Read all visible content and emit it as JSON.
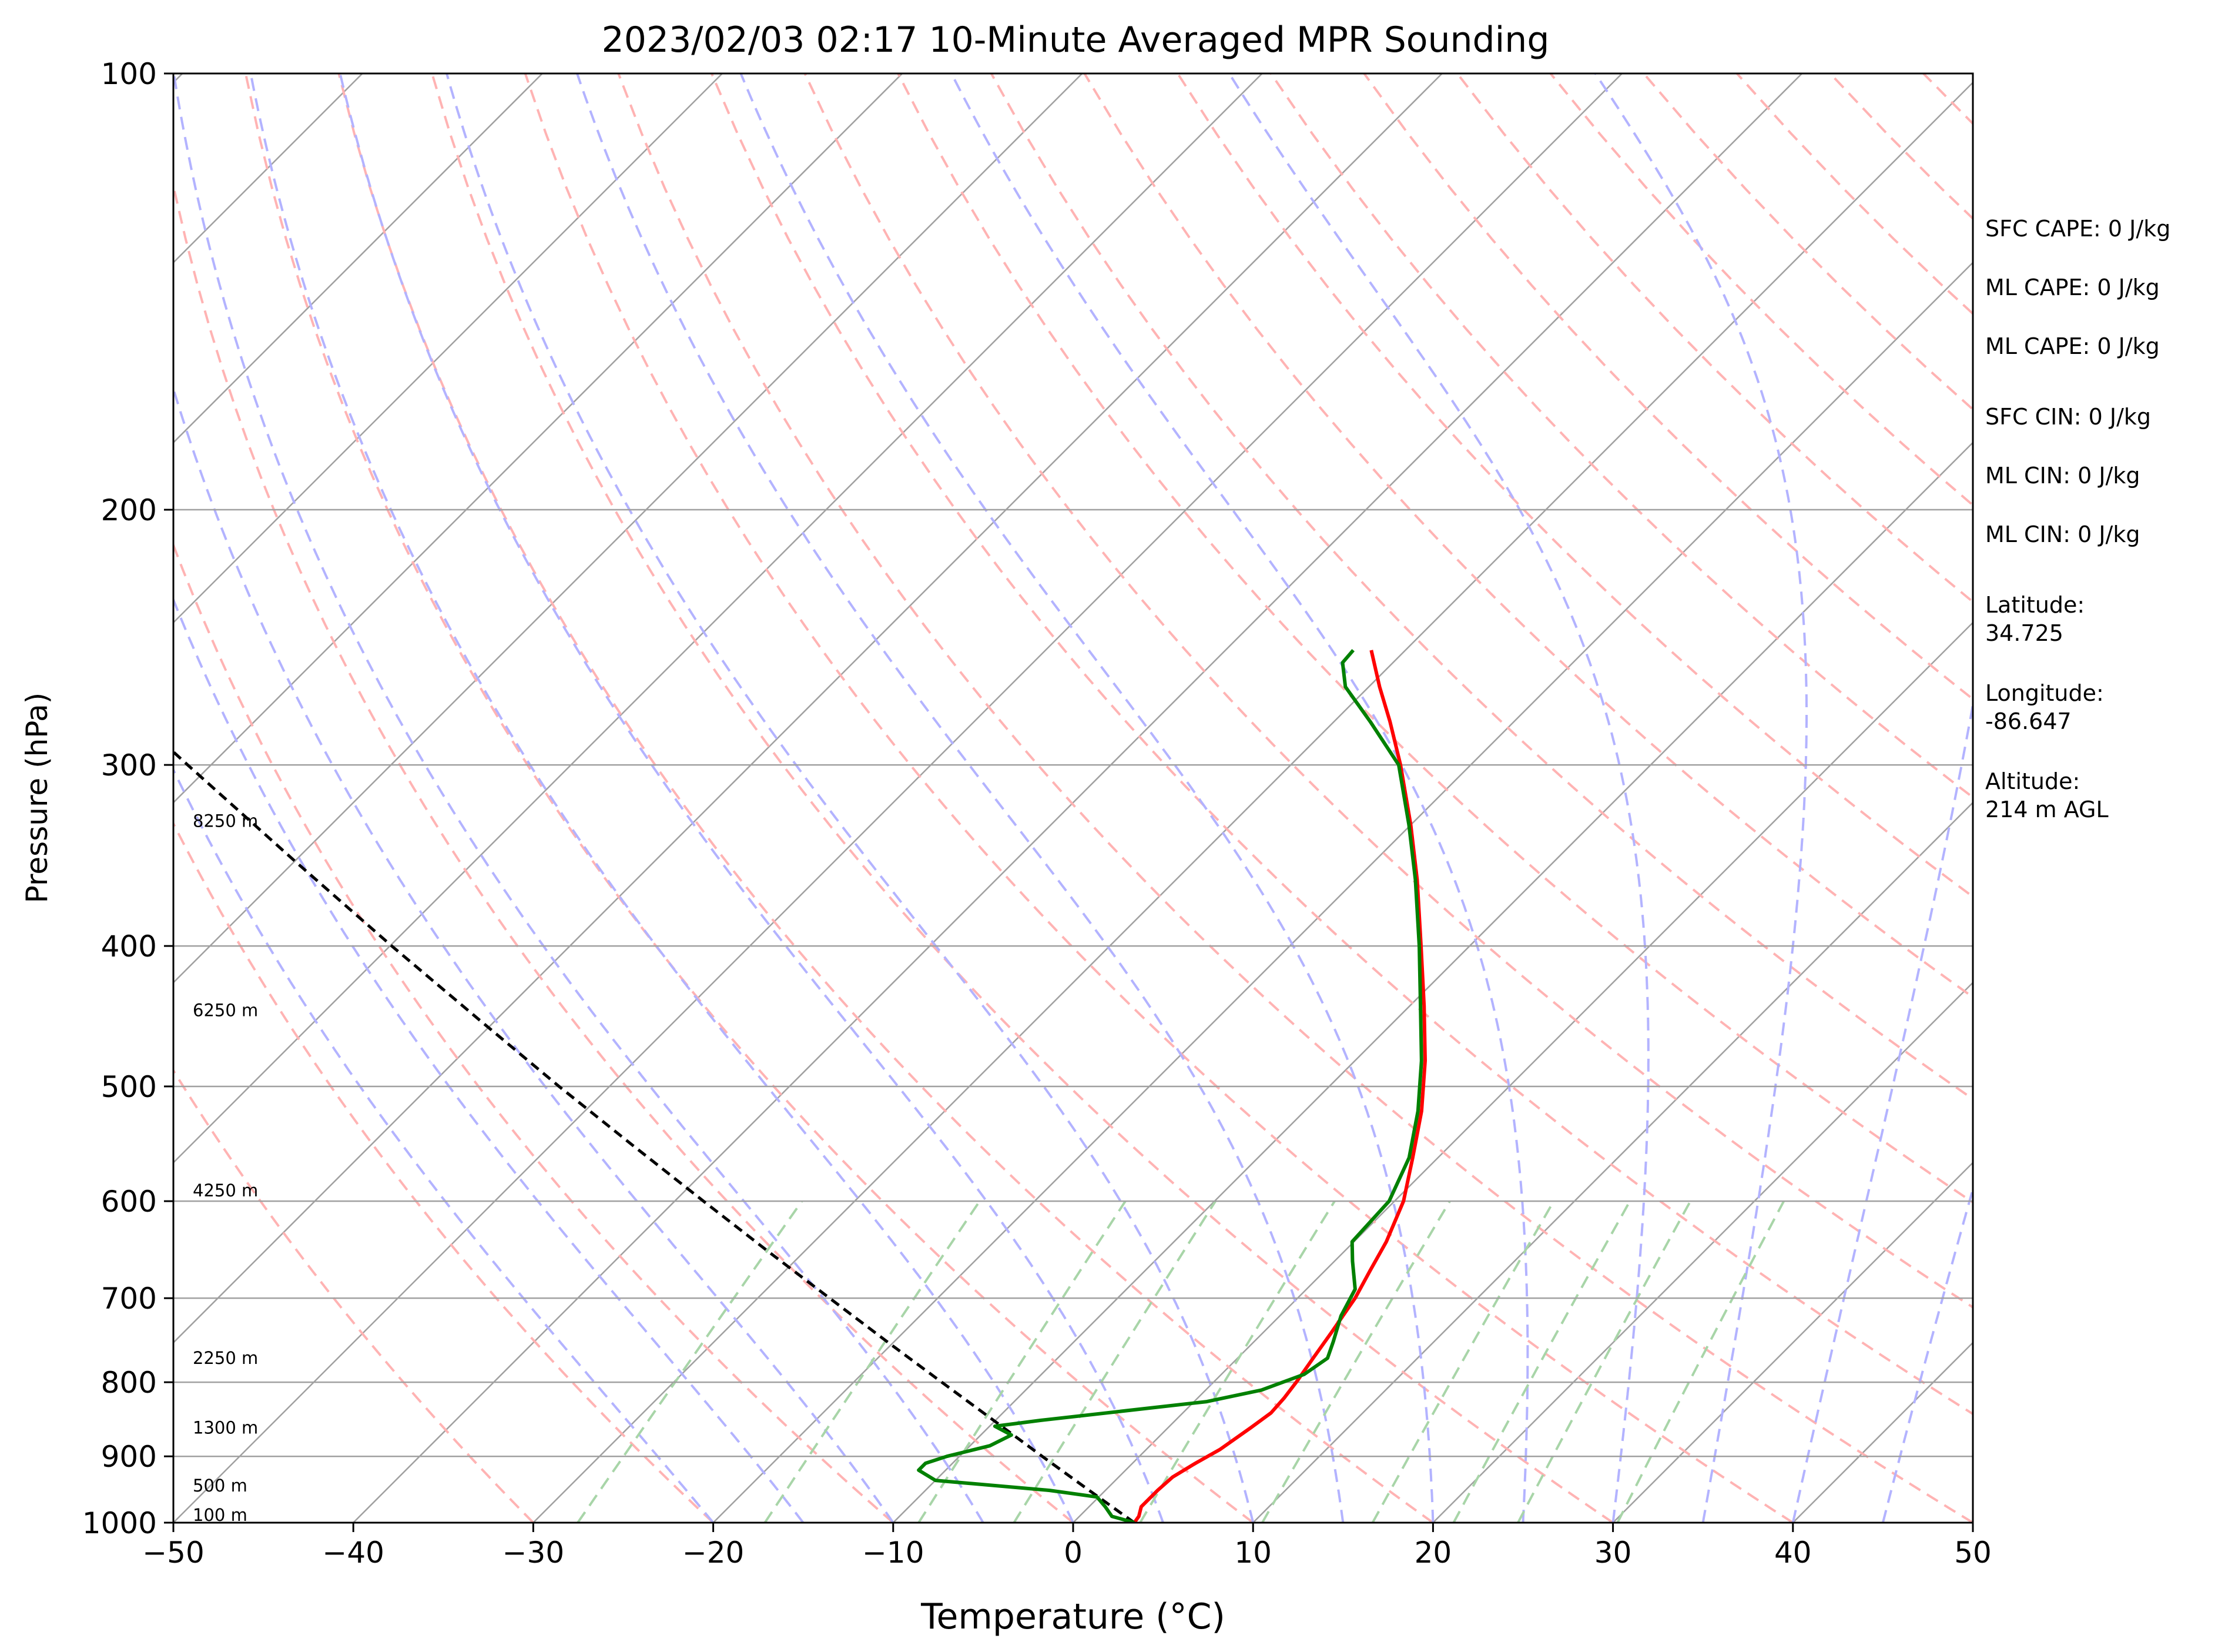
{
  "title": "2023/02/03 02:17 10-Minute Averaged MPR Sounding",
  "chart_data": {
    "type": "line",
    "subtype": "skew-T log-P diagram",
    "xlabel": "Temperature (°C)",
    "ylabel": "Pressure (hPa)",
    "xlim": [
      -50,
      50
    ],
    "ylim": [
      1000,
      100
    ],
    "y_scale": "log",
    "x_ticks": [
      -50,
      -40,
      -30,
      -20,
      -10,
      0,
      10,
      20,
      30,
      40,
      50
    ],
    "x_tick_labels": [
      "−50",
      "−40",
      "−30",
      "−20",
      "−10",
      "0",
      "10",
      "20",
      "30",
      "40",
      "50"
    ],
    "y_ticks": [
      1000,
      900,
      800,
      700,
      600,
      500,
      400,
      300,
      200,
      100
    ],
    "y_tick_labels": [
      "1000",
      "900",
      "800",
      "700",
      "600",
      "500",
      "400",
      "300",
      "200",
      "100"
    ],
    "grid": true,
    "colors": {
      "temperature": "#ff0000",
      "dewpoint": "#008000",
      "parcel": "#000000",
      "isotherm": "#a0a0a0",
      "dry_adiabat": "#ffb3b3",
      "moist_adiabat": "#b3b3ff",
      "mixing_ratio": "#a8d5a8"
    },
    "series": [
      {
        "role": "temperature",
        "points": [
          [
            1000,
            3.4
          ],
          [
            990,
            3.3
          ],
          [
            975,
            2.9
          ],
          [
            950,
            2.9
          ],
          [
            930,
            3.0
          ],
          [
            910,
            3.5
          ],
          [
            890,
            4.1
          ],
          [
            860,
            4.6
          ],
          [
            840,
            4.9
          ],
          [
            820,
            4.8
          ],
          [
            800,
            4.6
          ],
          [
            770,
            4.2
          ],
          [
            740,
            3.8
          ],
          [
            700,
            3.2
          ],
          [
            670,
            2.5
          ],
          [
            640,
            1.8
          ],
          [
            600,
            0.5
          ],
          [
            560,
            -1.4
          ],
          [
            520,
            -3.5
          ],
          [
            480,
            -6.1
          ],
          [
            440,
            -9.2
          ],
          [
            400,
            -12.7
          ],
          [
            360,
            -16.6
          ],
          [
            330,
            -20.0
          ],
          [
            300,
            -23.9
          ],
          [
            280,
            -26.9
          ],
          [
            265,
            -29.4
          ],
          [
            250,
            -31.9
          ]
        ]
      },
      {
        "role": "dewpoint",
        "points": [
          [
            1000,
            3.4
          ],
          [
            990,
            1.8
          ],
          [
            975,
            0.9
          ],
          [
            960,
            -0.1
          ],
          [
            950,
            -3.1
          ],
          [
            935,
            -10.0
          ],
          [
            920,
            -11.5
          ],
          [
            910,
            -11.5
          ],
          [
            900,
            -10.7
          ],
          [
            885,
            -8.9
          ],
          [
            870,
            -8.3
          ],
          [
            858,
            -9.7
          ],
          [
            850,
            -7.5
          ],
          [
            825,
            0.7
          ],
          [
            810,
            3.1
          ],
          [
            790,
            4.6
          ],
          [
            770,
            5.0
          ],
          [
            750,
            4.4
          ],
          [
            720,
            3.4
          ],
          [
            690,
            2.7
          ],
          [
            660,
            1.0
          ],
          [
            640,
            -0.1
          ],
          [
            600,
            -0.3
          ],
          [
            560,
            -1.6
          ],
          [
            520,
            -3.7
          ],
          [
            480,
            -6.3
          ],
          [
            440,
            -9.4
          ],
          [
            400,
            -12.8
          ],
          [
            360,
            -16.7
          ],
          [
            330,
            -20.1
          ],
          [
            300,
            -24.0
          ],
          [
            280,
            -28.0
          ],
          [
            265,
            -31.3
          ],
          [
            255,
            -32.8
          ],
          [
            250,
            -32.9
          ]
        ]
      },
      {
        "role": "parcel",
        "points": [
          [
            1000,
            3.4
          ],
          [
            950,
            -0.9
          ],
          [
            900,
            -5.4
          ],
          [
            850,
            -10.1
          ],
          [
            800,
            -15.1
          ],
          [
            750,
            -20.4
          ],
          [
            700,
            -26.0
          ],
          [
            650,
            -32.0
          ],
          [
            600,
            -38.4
          ],
          [
            550,
            -45.3
          ],
          [
            500,
            -52.8
          ],
          [
            450,
            -60.9
          ],
          [
            400,
            -69.9
          ],
          [
            350,
            -79.9
          ],
          [
            300,
            -91.3
          ],
          [
            260,
            -101.8
          ]
        ]
      }
    ],
    "height_labels": [
      {
        "text": "100 m",
        "pressure": 988
      },
      {
        "text": "500 m",
        "pressure": 943
      },
      {
        "text": "1300 m",
        "pressure": 860
      },
      {
        "text": "2250 m",
        "pressure": 770
      },
      {
        "text": "4250 m",
        "pressure": 590
      },
      {
        "text": "6250 m",
        "pressure": 443
      },
      {
        "text": "8250 m",
        "pressure": 328
      }
    ],
    "stats": [
      "SFC CAPE: 0 J/kg",
      "ML CAPE: 0 J/kg",
      "ML CAPE: 0 J/kg",
      "SFC CIN: 0 J/kg",
      "ML CIN: 0 J/kg",
      "ML CIN: 0 J/kg",
      "Latitude:\n34.725",
      "Longitude:\n-86.647",
      "Altitude:\n214 m AGL"
    ]
  }
}
